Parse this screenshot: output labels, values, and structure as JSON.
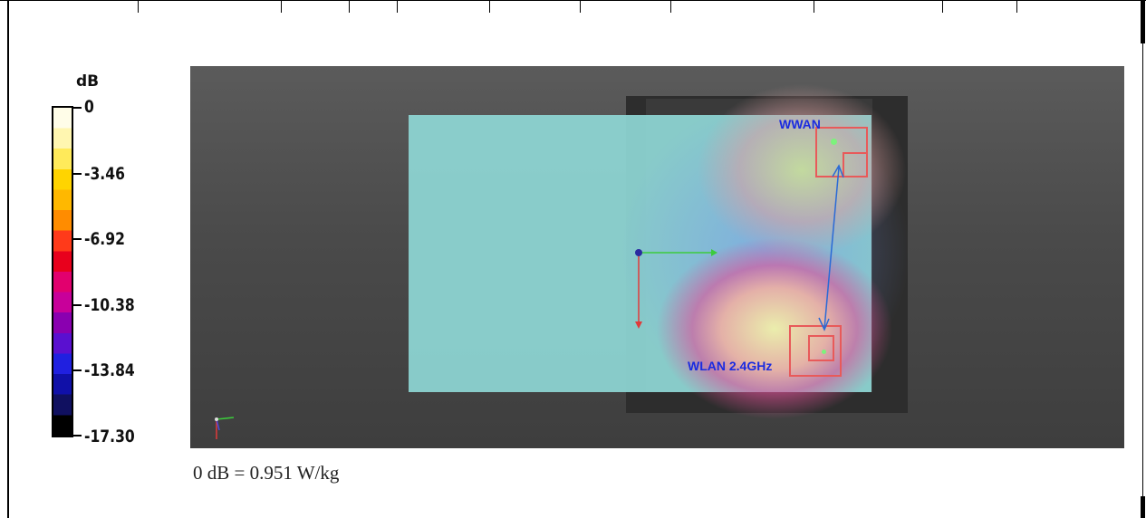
{
  "legend": {
    "unit": "dB",
    "ticks": [
      "0",
      "-3.46",
      "-6.92",
      "-10.38",
      "-13.84",
      "-17.30"
    ],
    "colors": [
      "#fffde8",
      "#fff6b0",
      "#ffea5a",
      "#ffd400",
      "#ffb800",
      "#ff8c00",
      "#ff3a1a",
      "#e8001c",
      "#e2006e",
      "#c8009a",
      "#8a00b0",
      "#5a10d0",
      "#2020e0",
      "#1010a8",
      "#101060",
      "#000000"
    ]
  },
  "labels": {
    "wwan": "WWAN",
    "wlan": "WLAN 2.4GHz"
  },
  "caption": "0 dB = 0.951 W/kg"
}
